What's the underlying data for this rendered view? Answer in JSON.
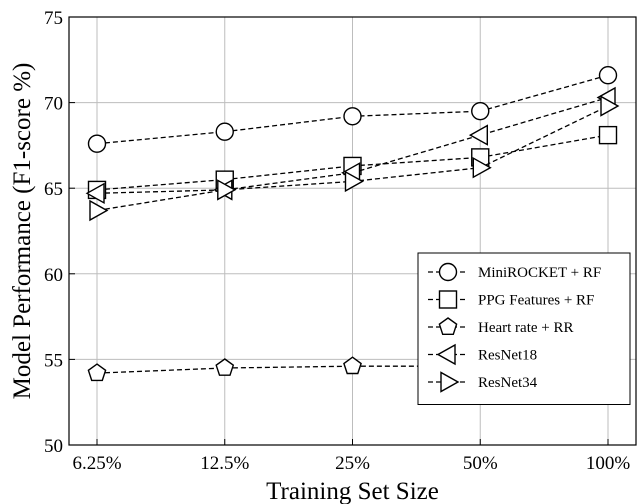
{
  "chart_data": {
    "type": "line",
    "categories": [
      "6.25%",
      "12.5%",
      "25%",
      "50%",
      "100%"
    ],
    "xlabel": "Training Set Size",
    "ylabel": "Model Performance (F1-score %)",
    "ylim": [
      50,
      75
    ],
    "yticks": [
      "50",
      "55",
      "60",
      "65",
      "70",
      "75"
    ],
    "grid": true,
    "legend_position": "center-right",
    "series": [
      {
        "name": "MiniROCKET + RF",
        "marker": "circle",
        "values": [
          67.6,
          68.3,
          69.2,
          69.5,
          71.6
        ]
      },
      {
        "name": "PPG Features + RF",
        "marker": "square",
        "values": [
          64.9,
          65.5,
          66.3,
          66.8,
          68.1
        ]
      },
      {
        "name": "Heart rate + RR",
        "marker": "pentagon",
        "values": [
          54.2,
          54.5,
          54.6,
          54.6,
          54.6
        ]
      },
      {
        "name": "ResNet18",
        "marker": "triangle-left",
        "values": [
          64.7,
          64.9,
          65.9,
          68.1,
          70.3
        ]
      },
      {
        "name": "ResNet34",
        "marker": "triangle-right",
        "values": [
          63.7,
          64.9,
          65.4,
          66.2,
          69.8
        ]
      }
    ]
  }
}
